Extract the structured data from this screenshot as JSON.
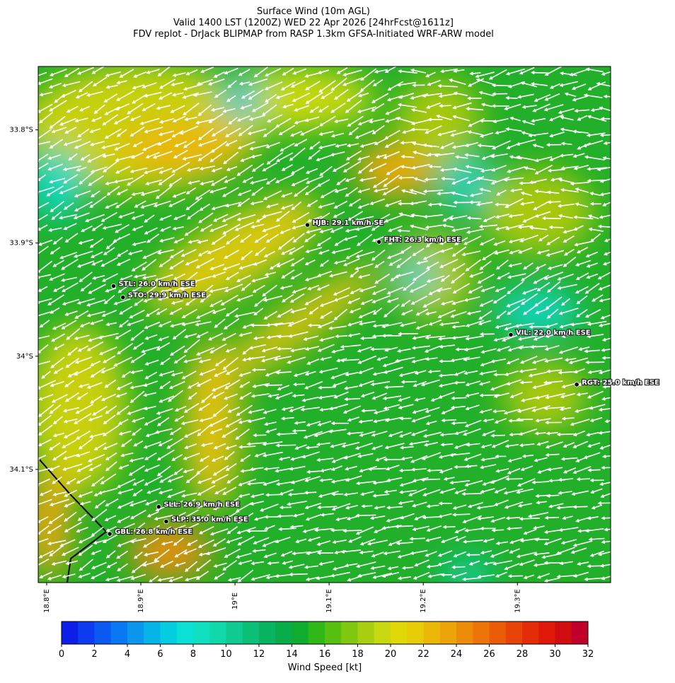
{
  "header": {
    "title": [
      "Surface Wind (10m AGL)",
      "Valid 1400 LST (1200Z) WED 22 Apr 2026 [24hrFcst@1611z]",
      "FDV replot - DrJack BLIPMAP from RASP 1.3km GFSA-Initiated WRF-ARW model"
    ]
  },
  "map": {
    "lonlim": [
      18.791,
      19.399
    ],
    "latlim": [
      -34.2,
      -33.744
    ],
    "lonticks": [
      {
        "value": 18.8,
        "label": "18.8°E"
      },
      {
        "value": 18.9,
        "label": "18.9°E"
      },
      {
        "value": 19.0,
        "label": "19°E"
      },
      {
        "value": 19.1,
        "label": "19.1°E"
      },
      {
        "value": 19.2,
        "label": "19.2°E"
      },
      {
        "value": 19.3,
        "label": "19.3°E"
      }
    ],
    "latticks": [
      {
        "value": -33.8,
        "label": "33.8°S"
      },
      {
        "value": -33.9,
        "label": "33.9°S"
      },
      {
        "value": -34.0,
        "label": "34°S"
      },
      {
        "value": -34.1,
        "label": "34.1°S"
      }
    ],
    "stations": [
      {
        "label": "HJB: 29.1 km/h SE",
        "lon": 19.077,
        "lat": -33.884
      },
      {
        "label": "FHT: 26.3 km/h ESE",
        "lon": 19.153,
        "lat": -33.899
      },
      {
        "label": "STL: 26.0 km/h ESE",
        "lon": 18.871,
        "lat": -33.938
      },
      {
        "label": "STO: 29.9 km/h ESE",
        "lon": 18.881,
        "lat": -33.948
      },
      {
        "label": "VIL: 22.0 km/h ESE",
        "lon": 19.293,
        "lat": -33.981
      },
      {
        "label": "RGT: 25.0 km/h ESE",
        "lon": 19.363,
        "lat": -34.025
      },
      {
        "label": "SLL: 26.9 km/h ESE",
        "lon": 18.919,
        "lat": -34.133
      },
      {
        "label": "SLP: 35.0 km/h ESE",
        "lon": 18.927,
        "lat": -34.146
      },
      {
        "label": "GBL: 26.8 km/h ESE",
        "lon": 18.867,
        "lat": -34.157
      }
    ]
  },
  "colorbar": {
    "label": "Wind Speed [kt]",
    "lim": [
      0,
      32
    ],
    "ticks": [
      0,
      2,
      4,
      6,
      8,
      10,
      12,
      14,
      16,
      18,
      20,
      22,
      24,
      26,
      28,
      30,
      32
    ],
    "colors": [
      "#0b1fe8",
      "#0d3cf0",
      "#0a5af2",
      "#0a78f2",
      "#0a98ee",
      "#05b5e8",
      "#05cde0",
      "#0ae0d6",
      "#10e0c0",
      "#10d8a8",
      "#10cc90",
      "#0cc078",
      "#08b460",
      "#08ac48",
      "#10ac30",
      "#30b818",
      "#58c010",
      "#80c810",
      "#a8d010",
      "#c8d810",
      "#e0d808",
      "#e8cc08",
      "#ecb808",
      "#eca408",
      "#ec8c08",
      "#ec7408",
      "#ec5c08",
      "#e84408",
      "#e42c08",
      "#e01808",
      "#d00c10",
      "#c0002a"
    ]
  }
}
